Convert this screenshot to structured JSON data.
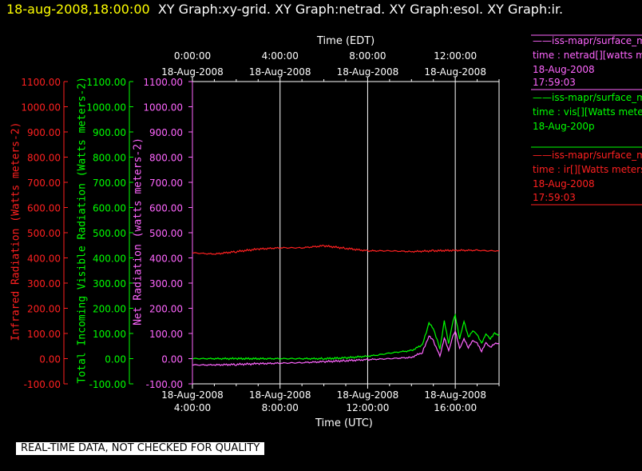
{
  "header": {
    "timestamp": "18-aug-2008,18:00:00",
    "graphs": "XY Graph:xy-grid.  XY Graph:netrad.  XY Graph:esol.  XY Graph:ir."
  },
  "banner": "REAL-TIME DATA, NOT CHECKED FOR QUALITY",
  "legend": {
    "netrad": {
      "line1": "iss-mapr/surface_m",
      "line2": "time : netrad[][watts m",
      "line3": "18-Aug-2008",
      "line4": "17:59:03"
    },
    "vis": {
      "line1": "iss-mapr/surface_m",
      "line2": "time : vis[][Watts mete",
      "line3": "18-Aug-200p"
    },
    "ir": {
      "line1": "iss-mapr/surface_m",
      "line2": "time : ir[][Watts meters",
      "line3": "18-Aug-2008",
      "line4": "17:59:03"
    }
  },
  "colors": {
    "ir": "#ff2020",
    "vis": "#00ff00",
    "netrad": "#ff66ff",
    "text": "#ffffff",
    "grid": "#ffffff"
  },
  "chart_data": {
    "type": "line",
    "top_axis_label": "Time (EDT)",
    "bottom_axis_label": "Time (UTC)",
    "top_ticks": [
      {
        "time": "0:00:00",
        "date": "18-Aug-2008"
      },
      {
        "time": "4:00:00",
        "date": "18-Aug-2008"
      },
      {
        "time": "8:00:00",
        "date": "18-Aug-2008"
      },
      {
        "time": "12:00:00",
        "date": "18-Aug-2008"
      }
    ],
    "bottom_ticks": [
      {
        "date": "18-Aug-2008",
        "time": "4:00:00"
      },
      {
        "date": "18-Aug-2008",
        "time": "8:00:00"
      },
      {
        "date": "18-Aug-2008",
        "time": "12:00:00"
      },
      {
        "date": "18-Aug-2008",
        "time": "16:00:00"
      }
    ],
    "xlim_utc_hours": [
      4.0,
      18.0
    ],
    "ylim": [
      -100,
      1100
    ],
    "y_ticks": [
      "1100.00",
      "1000.00",
      "900.00",
      "800.00",
      "700.00",
      "600.00",
      "500.00",
      "400.00",
      "300.00",
      "200.00",
      "100.00",
      "0.00",
      "-100.00"
    ],
    "y_axes": [
      {
        "label": "Infrared Radiation (Watts meters-2)",
        "color": "ir"
      },
      {
        "label": "Total Incoming Visible Radiation (Watts meters-2)",
        "color": "vis"
      },
      {
        "label": "Net Radiation (watts meters-2)",
        "color": "netrad"
      }
    ],
    "grid": true,
    "series": [
      {
        "name": "ir",
        "color": "ir",
        "x": [
          4.0,
          5.0,
          6.0,
          7.0,
          8.0,
          9.0,
          10.0,
          11.0,
          12.0,
          13.0,
          14.0,
          15.0,
          16.0,
          17.0,
          17.5,
          18.0
        ],
        "y": [
          420,
          415,
          425,
          435,
          440,
          440,
          448,
          438,
          428,
          428,
          425,
          428,
          430,
          430,
          428,
          428
        ]
      },
      {
        "name": "vis",
        "color": "vis",
        "x": [
          4.0,
          6.0,
          8.0,
          10.0,
          11.0,
          12.0,
          12.5,
          13.0,
          13.5,
          14.0,
          14.5,
          14.8,
          15.0,
          15.3,
          15.5,
          15.7,
          15.9,
          16.0,
          16.2,
          16.4,
          16.6,
          16.8,
          17.0,
          17.2,
          17.4,
          17.6,
          17.8,
          18.0
        ],
        "y": [
          0,
          0,
          0,
          0,
          3,
          10,
          15,
          22,
          27,
          32,
          55,
          140,
          120,
          40,
          150,
          60,
          150,
          170,
          80,
          150,
          85,
          110,
          95,
          60,
          100,
          80,
          100,
          90
        ]
      },
      {
        "name": "netrad",
        "color": "netrad",
        "x": [
          4.0,
          5.0,
          6.0,
          7.0,
          8.0,
          9.0,
          10.0,
          11.0,
          12.0,
          13.0,
          14.0,
          14.5,
          14.8,
          15.0,
          15.3,
          15.5,
          15.7,
          15.9,
          16.0,
          16.2,
          16.4,
          16.6,
          16.8,
          17.0,
          17.2,
          17.4,
          17.6,
          17.8,
          18.0
        ],
        "y": [
          -25,
          -25,
          -23,
          -20,
          -18,
          -16,
          -12,
          -8,
          -4,
          0,
          5,
          25,
          90,
          70,
          10,
          85,
          30,
          90,
          110,
          40,
          80,
          45,
          70,
          60,
          30,
          65,
          45,
          60,
          58
        ]
      }
    ]
  }
}
